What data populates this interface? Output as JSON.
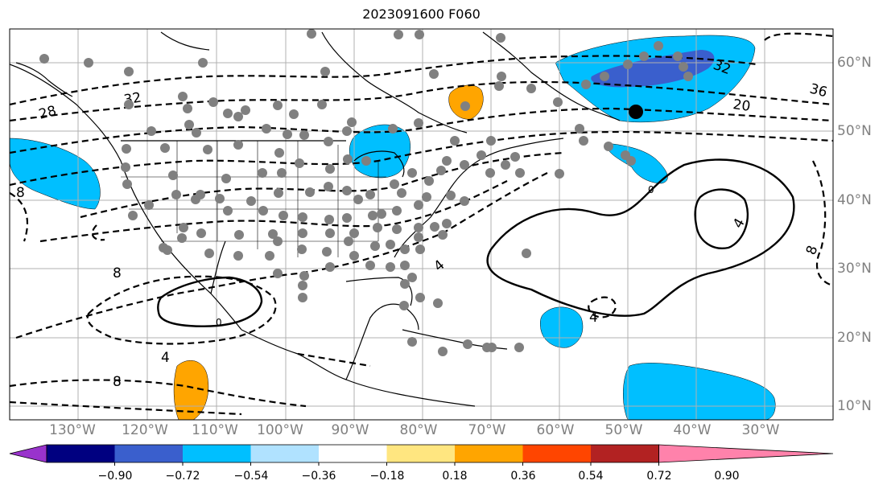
{
  "title": "2023091600 F060",
  "lon_labels": [
    "130°W",
    "120°W",
    "110°W",
    "100°W",
    "90°W",
    "80°W",
    "70°W",
    "60°W",
    "50°W",
    "40°W",
    "30°W"
  ],
  "lat_labels": [
    "60°N",
    "50°N",
    "40°N",
    "30°N",
    "20°N",
    "10°N"
  ],
  "contour_labels": [
    "32",
    "28",
    "32",
    "20",
    "36",
    "8",
    "8",
    "8",
    "4",
    "4",
    "4",
    "4",
    "8",
    "0",
    "0"
  ],
  "colorbar": {
    "ticks": [
      "−0.90",
      "−0.72",
      "−0.54",
      "−0.36",
      "−0.18",
      "0.18",
      "0.36",
      "0.54",
      "0.72",
      "0.90"
    ],
    "colors": [
      "#9933cc",
      "#000080",
      "#3a5fcd",
      "#00bfff",
      "#b0e2ff",
      "#ffffff",
      "#ffe680",
      "#ffa500",
      "#ff4500",
      "#b22222",
      "#ff82ab"
    ]
  },
  "colors": {
    "shade_light_blue": "#00bfff",
    "shade_dark_blue": "#3a5fcd",
    "shade_orange": "#ffa500",
    "station": "#808080",
    "grid": "#b0b0b0"
  }
}
